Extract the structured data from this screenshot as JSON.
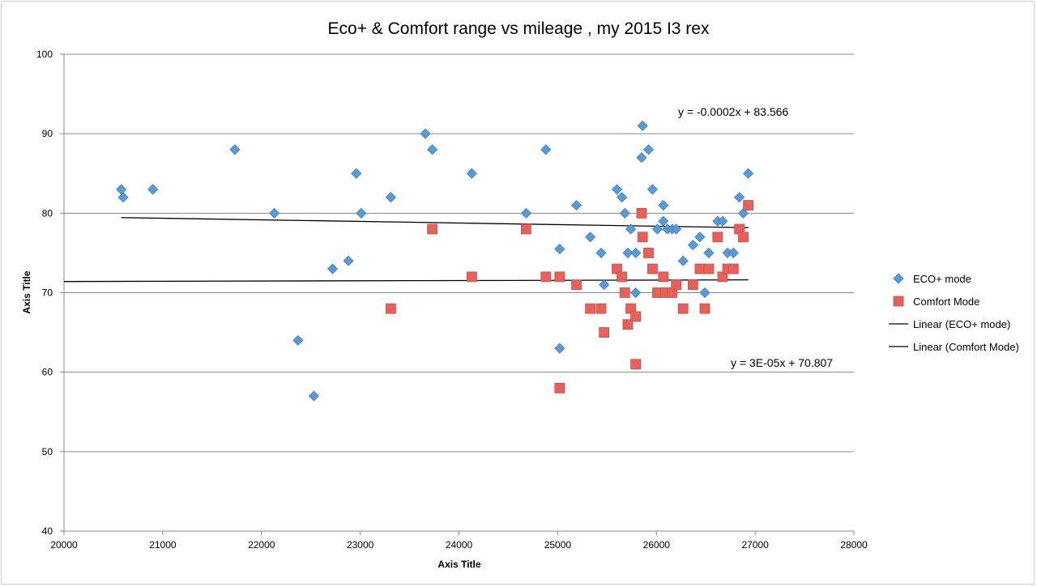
{
  "chart_data": {
    "type": "scatter",
    "title": "Eco+ & Comfort range vs mileage , my 2015 I3 rex",
    "xlabel": "Axis Title",
    "ylabel": "Axis Title",
    "xlim": [
      20000,
      28000
    ],
    "ylim": [
      40,
      100
    ],
    "x_ticks": [
      "20000",
      "21000",
      "22000",
      "23000",
      "24000",
      "25000",
      "26000",
      "27000",
      "28000"
    ],
    "y_ticks": [
      "40",
      "50",
      "60",
      "70",
      "80",
      "90",
      "100"
    ],
    "x_tick_values": [
      20000,
      21000,
      22000,
      23000,
      24000,
      25000,
      26000,
      27000,
      28000
    ],
    "y_tick_values": [
      40,
      50,
      60,
      70,
      80,
      90,
      100
    ],
    "grid": "horizontal",
    "legend_position": "right",
    "series": [
      {
        "name": "ECO+ mode",
        "marker": "diamond",
        "color": "#5b9bd5",
        "points": [
          [
            20580,
            83
          ],
          [
            20600,
            82
          ],
          [
            20900,
            83
          ],
          [
            21730,
            88
          ],
          [
            22130,
            80
          ],
          [
            22370,
            64
          ],
          [
            22530,
            57
          ],
          [
            22720,
            73
          ],
          [
            22880,
            74
          ],
          [
            22960,
            85
          ],
          [
            23010,
            80
          ],
          [
            23310,
            82
          ],
          [
            23660,
            90
          ],
          [
            23730,
            88
          ],
          [
            24130,
            85
          ],
          [
            24680,
            80
          ],
          [
            24880,
            88
          ],
          [
            25020,
            75.5
          ],
          [
            25020,
            63
          ],
          [
            25190,
            81
          ],
          [
            25330,
            77
          ],
          [
            25440,
            75
          ],
          [
            25470,
            71
          ],
          [
            25600,
            83
          ],
          [
            25650,
            82
          ],
          [
            25680,
            80
          ],
          [
            25710,
            75
          ],
          [
            25740,
            78
          ],
          [
            25790,
            75
          ],
          [
            25790,
            70
          ],
          [
            25850,
            87
          ],
          [
            25860,
            91
          ],
          [
            25920,
            88
          ],
          [
            25960,
            83
          ],
          [
            26010,
            78
          ],
          [
            26070,
            81
          ],
          [
            26070,
            79
          ],
          [
            26090,
            70
          ],
          [
            26110,
            78
          ],
          [
            26160,
            78
          ],
          [
            26200,
            78
          ],
          [
            26270,
            74
          ],
          [
            26370,
            76
          ],
          [
            26440,
            77
          ],
          [
            26490,
            70
          ],
          [
            26530,
            75
          ],
          [
            26620,
            79
          ],
          [
            26670,
            79
          ],
          [
            26720,
            75
          ],
          [
            26780,
            75
          ],
          [
            26840,
            82
          ],
          [
            26880,
            80
          ],
          [
            26930,
            85
          ]
        ]
      },
      {
        "name": "Comfort Mode",
        "marker": "square",
        "color": "#e8605a",
        "points": [
          [
            23310,
            68
          ],
          [
            23730,
            78
          ],
          [
            24130,
            72
          ],
          [
            24680,
            78
          ],
          [
            24880,
            72
          ],
          [
            25020,
            72
          ],
          [
            25020,
            58
          ],
          [
            25190,
            71
          ],
          [
            25330,
            68
          ],
          [
            25440,
            68
          ],
          [
            25470,
            65
          ],
          [
            25600,
            73
          ],
          [
            25650,
            72
          ],
          [
            25680,
            70
          ],
          [
            25710,
            66
          ],
          [
            25740,
            68
          ],
          [
            25790,
            67
          ],
          [
            25790,
            61
          ],
          [
            25850,
            80
          ],
          [
            25860,
            77
          ],
          [
            25920,
            75
          ],
          [
            25960,
            73
          ],
          [
            26010,
            70
          ],
          [
            26070,
            72
          ],
          [
            26090,
            70
          ],
          [
            26160,
            70
          ],
          [
            26200,
            71
          ],
          [
            26270,
            68
          ],
          [
            26370,
            71
          ],
          [
            26440,
            73
          ],
          [
            26490,
            68
          ],
          [
            26530,
            73
          ],
          [
            26620,
            77
          ],
          [
            26670,
            72
          ],
          [
            26720,
            73
          ],
          [
            26780,
            73
          ],
          [
            26840,
            78
          ],
          [
            26880,
            77
          ],
          [
            26930,
            81
          ]
        ]
      }
    ],
    "trendlines": [
      {
        "name": "Linear (ECO+ mode)",
        "slope": -0.0002,
        "intercept": 83.566,
        "x_range": [
          20580,
          26930
        ],
        "equation": "y = -0.0002x + 83.566"
      },
      {
        "name": "Linear (Comfort Mode)",
        "slope": 3e-05,
        "intercept": 70.807,
        "x_range": [
          20000,
          26930
        ],
        "equation": "y = 3E-05x + 70.807"
      }
    ]
  }
}
